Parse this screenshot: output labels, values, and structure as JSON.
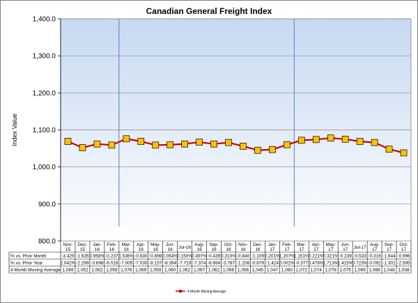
{
  "chart_data": {
    "type": "line",
    "title": "Canadian General Freight Index",
    "xlabel": "",
    "ylabel": "Index Value",
    "ylim": [
      800,
      1400
    ],
    "yticks": [
      "1,400.0",
      "1,300.0",
      "1,200.0",
      "1,100.0",
      "1,000.0",
      "900.0",
      "800.0"
    ],
    "ytick_values": [
      1400,
      1300,
      1200,
      1100,
      1000,
      900,
      800
    ],
    "grid": true,
    "legend_position": "bottom",
    "categories": [
      [
        "Nov-",
        "15"
      ],
      [
        "Dec-",
        "15"
      ],
      [
        "Jan-",
        "16"
      ],
      [
        "Feb-",
        "16"
      ],
      [
        "Mar-",
        "16"
      ],
      [
        "Apr-",
        "16"
      ],
      [
        "May-",
        "16"
      ],
      [
        "Jun-",
        "16"
      ],
      [
        "Jul-16"
      ],
      [
        "Aug-",
        "16"
      ],
      [
        "Sep-",
        "16"
      ],
      [
        "Oct-",
        "16"
      ],
      [
        "Nov-",
        "16"
      ],
      [
        "Dec-",
        "16"
      ],
      [
        "Jan-",
        "17"
      ],
      [
        "Feb-",
        "17"
      ],
      [
        "Mar-",
        "17"
      ],
      [
        "Apr-",
        "17"
      ],
      [
        "May-",
        "17"
      ],
      [
        "Jun-",
        "17"
      ],
      [
        "Jul-17"
      ],
      [
        "Aug-",
        "17"
      ],
      [
        "Sep-",
        "17"
      ],
      [
        "Oct-",
        "17"
      ]
    ],
    "series": [
      {
        "name": "4 Month Moving Average",
        "color": "#cc0000",
        "marker_color": "#ffc000",
        "values": [
          1069,
          1052,
          1062,
          1059,
          1076,
          1069,
          1059,
          1060,
          1062,
          1067,
          1062,
          1066,
          1056,
          1045,
          1047,
          1060,
          1072,
          1074,
          1078,
          1075,
          1069,
          1066,
          1048,
          1038
        ]
      }
    ],
    "year_separators": [
      3.5,
      15.5
    ],
    "table": {
      "rows": [
        {
          "label": "% vs. Prior Month",
          "values": [
            "-3.429",
            "-1.635",
            "0.958%",
            "-0.237",
            "1.536%",
            "-0.630",
            "-0.898",
            "0.054%",
            "0.150%",
            "0.497%",
            "-0.439",
            "0.310%",
            "-0.840",
            "-1.109",
            "0.201%",
            "1.207%",
            "1.151%",
            "0.221%",
            "0.321%",
            "-0.239",
            "-0.533",
            "-0.316",
            "-1.644",
            "-0.996"
          ]
        },
        {
          "label": "% vs. Prior Year",
          "values": [
            "2.042%",
            "-2.299",
            "-3.698",
            "-6.016",
            "-7.005",
            "-7.035",
            "-8.157",
            "-8.394",
            "-7.719",
            "-7.374",
            "-6.694",
            "-3.787",
            "-1.208",
            "-0.679",
            "-1.424",
            "0.002%",
            "-0.377",
            "0.476%",
            "1.713%",
            "1.415%",
            "0.723%",
            "-0.092",
            "-1.301",
            "-2.595"
          ]
        },
        {
          "label": "4 Month Moving Average",
          "values": [
            "1,069",
            "1,052",
            "1,062",
            "1,059",
            "1,076",
            "1,069",
            "1,059",
            "1,060",
            "1,062",
            "1,067",
            "1,062",
            "1,066",
            "1,056",
            "1,045",
            "1,047",
            "1,060",
            "1,072",
            "1,074",
            "1,078",
            "1,075",
            "1,069",
            "1,066",
            "1,048",
            "1,038"
          ]
        }
      ]
    },
    "legend": [
      {
        "label": "4 Month Moving Average",
        "color": "#cc0000"
      }
    ]
  }
}
